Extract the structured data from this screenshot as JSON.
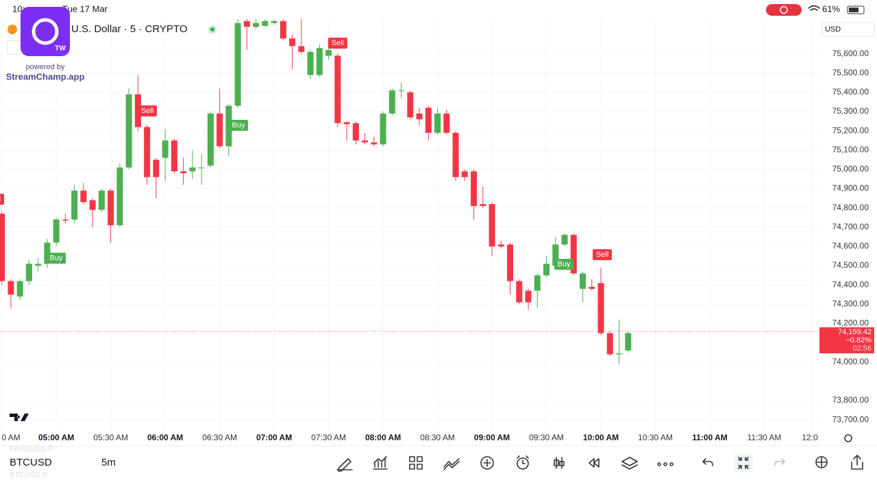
{
  "status_bar": {
    "time": "10:",
    "date": "Tue 17 Mar",
    "battery": "61%"
  },
  "overlay": {
    "badge": "TW",
    "powered_by": "powered by",
    "brand": "StreamChamp.app"
  },
  "header": {
    "symbol_title": "U.S. Dollar · 5 · CRYPTO",
    "currency": "USD"
  },
  "chart_data": {
    "type": "candlestick",
    "x": [
      270,
      275,
      280,
      285,
      290,
      295,
      300,
      305,
      310,
      315,
      320,
      325,
      330,
      335,
      340,
      345,
      350,
      355,
      360,
      365,
      370,
      375,
      380,
      385,
      390,
      395,
      400,
      405,
      410,
      415,
      420,
      425,
      430,
      435,
      440,
      445,
      450,
      455,
      460,
      465,
      470,
      475,
      480,
      485,
      490,
      495,
      500,
      505,
      510,
      515,
      520,
      525,
      530,
      535,
      540,
      545,
      550,
      555,
      560,
      565,
      570,
      575,
      580,
      585,
      590,
      595,
      600,
      605,
      610,
      615
    ],
    "open": [
      74770,
      74420,
      74340,
      74420,
      74500,
      74510,
      74620,
      74740,
      74740,
      74890,
      74840,
      74790,
      74890,
      74710,
      75010,
      75390,
      75220,
      75050,
      75060,
      75150,
      74990,
      74990,
      75010,
      75020,
      75290,
      75120,
      75330,
      75770,
      75740,
      75745,
      75760,
      75770,
      75680,
      75640,
      75490,
      75490,
      75590,
      75590,
      75245,
      75240,
      75150,
      75140,
      75130,
      75290,
      75410,
      75400,
      75290,
      75320,
      75190,
      75290,
      75190,
      74990,
      74990,
      74820,
      74820,
      74610,
      74610,
      74420,
      74370,
      74370,
      74450,
      74500,
      74610,
      74660,
      74380,
      74390,
      74410,
      74150,
      74040,
      74060
    ],
    "high": [
      74780,
      74430,
      74430,
      74530,
      74540,
      74640,
      74750,
      74770,
      74920,
      74930,
      74850,
      74900,
      74900,
      75030,
      75420,
      75490,
      75230,
      75060,
      75210,
      75160,
      75060,
      75100,
      75080,
      75300,
      75420,
      75340,
      75780,
      75780,
      75780,
      75780,
      75780,
      75780,
      75700,
      75780,
      75620,
      75650,
      75650,
      75600,
      75250,
      75250,
      75190,
      75170,
      75300,
      75420,
      75450,
      75410,
      75320,
      75330,
      75320,
      75310,
      75200,
      75000,
      75000,
      74910,
      74830,
      74630,
      74620,
      74430,
      74380,
      74460,
      74550,
      74650,
      74670,
      74670,
      74470,
      74430,
      74490,
      74160,
      74220,
      74160
    ],
    "low": [
      74400,
      74280,
      74320,
      74400,
      74470,
      74490,
      74600,
      74720,
      74720,
      74820,
      74700,
      74780,
      74620,
      74700,
      75000,
      75200,
      74920,
      74850,
      74940,
      74980,
      74920,
      74950,
      74920,
      75010,
      75110,
      75070,
      75320,
      75620,
      75730,
      75740,
      75750,
      75670,
      75520,
      75600,
      75470,
      75480,
      75570,
      75220,
      75150,
      75130,
      75130,
      75120,
      75120,
      75280,
      75370,
      75260,
      75230,
      75150,
      75180,
      75180,
      74940,
      74940,
      74740,
      74800,
      74550,
      74590,
      74350,
      74300,
      74270,
      74280,
      74440,
      74490,
      74600,
      74450,
      74310,
      74370,
      74140,
      74030,
      73990,
      74050
    ],
    "close": [
      74420,
      74350,
      74420,
      74510,
      74510,
      74620,
      74740,
      74735,
      74890,
      74830,
      74790,
      74890,
      74710,
      75010,
      75390,
      75220,
      74960,
      74960,
      75150,
      74990,
      74980,
      75010,
      75010,
      75290,
      75120,
      75330,
      75760,
      75740,
      75760,
      75770,
      75770,
      75680,
      75640,
      75610,
      75610,
      75630,
      75620,
      75240,
      75235,
      75150,
      75140,
      75130,
      75290,
      75410,
      75410,
      75270,
      75260,
      75190,
      75290,
      75190,
      74960,
      74960,
      74810,
      74810,
      74600,
      74600,
      74420,
      74310,
      74310,
      74450,
      74510,
      74610,
      74660,
      74460,
      74460,
      74380,
      74150,
      74040,
      74045,
      74150
    ],
    "up_color": "#4caf50",
    "down_color": "#f23645",
    "xlim": [
      269,
      720
    ],
    "xticks": [
      {
        "value": 270,
        "label": "0 AM"
      },
      {
        "value": 300,
        "label": "05:00 AM"
      },
      {
        "value": 330,
        "label": "05:30 AM"
      },
      {
        "value": 360,
        "label": "06:00 AM"
      },
      {
        "value": 390,
        "label": "06:30 AM"
      },
      {
        "value": 420,
        "label": "07:00 AM"
      },
      {
        "value": 450,
        "label": "07:30 AM"
      },
      {
        "value": 480,
        "label": "08:00 AM"
      },
      {
        "value": 510,
        "label": "08:30 AM"
      },
      {
        "value": 540,
        "label": "09:00 AM"
      },
      {
        "value": 570,
        "label": "09:30 AM"
      },
      {
        "value": 600,
        "label": "10:00 AM"
      },
      {
        "value": 630,
        "label": "10:30 AM"
      },
      {
        "value": 660,
        "label": "11:00 AM"
      },
      {
        "value": 690,
        "label": "11:30 AM"
      },
      {
        "value": 716,
        "label": "12:0"
      }
    ],
    "ylim": [
      73640,
      75780
    ],
    "yticks": [
      {
        "value": 75600,
        "label": "75,600.00"
      },
      {
        "value": 75500,
        "label": "75,500.00"
      },
      {
        "value": 75400,
        "label": "75,400.00"
      },
      {
        "value": 75300,
        "label": "75,300.00"
      },
      {
        "value": 75200,
        "label": "75,200.00"
      },
      {
        "value": 75100,
        "label": "75,100.00"
      },
      {
        "value": 75000,
        "label": "75,000.00"
      },
      {
        "value": 74900,
        "label": "74,900.00"
      },
      {
        "value": 74800,
        "label": "74,800.00"
      },
      {
        "value": 74700,
        "label": "74,700.00"
      },
      {
        "value": 74600,
        "label": "74,600.00"
      },
      {
        "value": 74500,
        "label": "74,500.00"
      },
      {
        "value": 74400,
        "label": "74,400.00"
      },
      {
        "value": 74300,
        "label": "74,300.00"
      },
      {
        "value": 74200,
        "label": "74,200.00"
      },
      {
        "value": 74000,
        "label": "74,000.00"
      },
      {
        "value": 73800,
        "label": "73,800.00"
      },
      {
        "value": 73700,
        "label": "73,700.00"
      }
    ],
    "grid": true,
    "last_price": {
      "value": 74159.42,
      "label": "74,159.42"
    },
    "change": {
      "value": -0.82,
      "label": "−0.82%"
    },
    "countdown": "02:56",
    "signals": [
      "Sell",
      "Buy",
      "Sell",
      "Buy",
      "Sell",
      "Buy",
      "Sell"
    ]
  },
  "footer": {
    "symbol": "BTCUSD",
    "interval": "5m",
    "prev_symbol": "PAXGUSD.P",
    "next_symbol": "BTCUSD.P"
  }
}
